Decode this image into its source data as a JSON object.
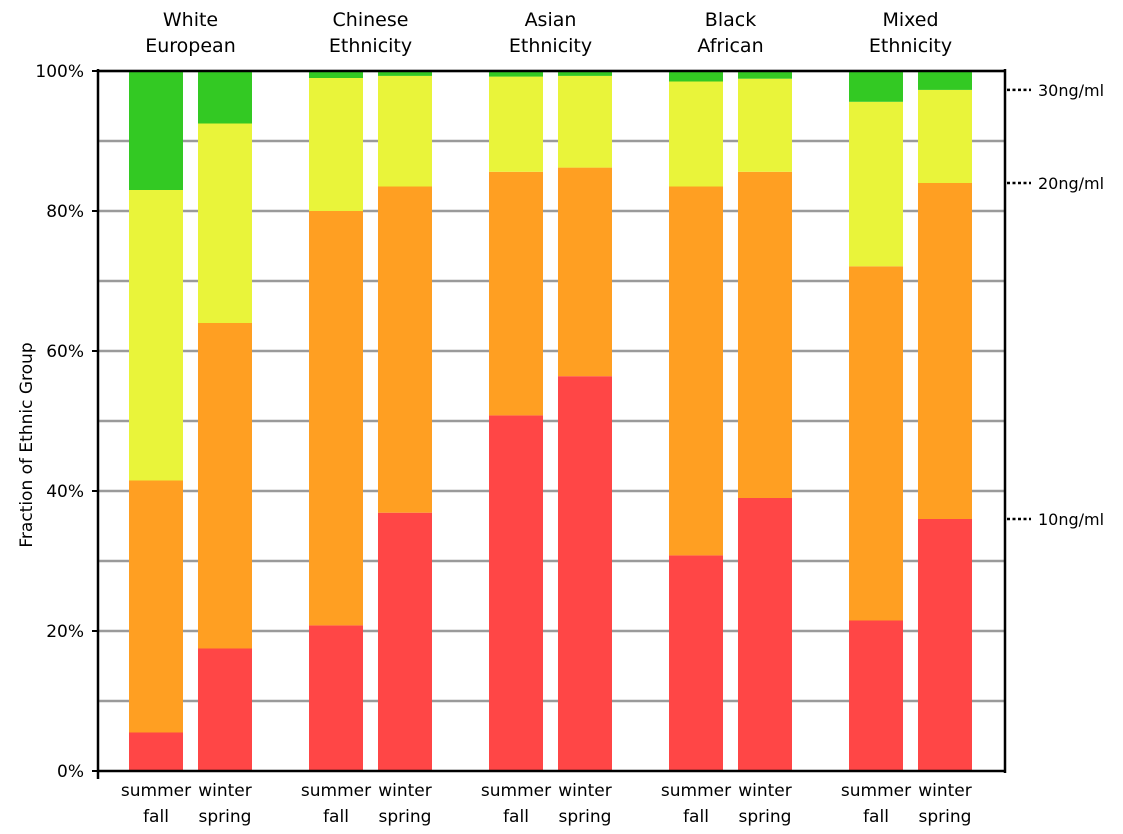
{
  "chart_data": {
    "type": "bar",
    "stacked": true,
    "ylabel": "Fraction of Ethnic Group",
    "ylim": [
      0,
      100
    ],
    "yticks": [
      "0%",
      "20%",
      "40%",
      "60%",
      "80%",
      "100%"
    ],
    "grid": true,
    "groups": [
      {
        "label_lines": [
          "White",
          "European"
        ],
        "bars": [
          {
            "label_lines": [
              "summer",
              "fall"
            ],
            "segments": [
              5.5,
              36.0,
              41.5,
              17.0
            ]
          },
          {
            "label_lines": [
              "winter",
              "spring"
            ],
            "segments": [
              17.5,
              46.5,
              28.5,
              7.5
            ]
          }
        ]
      },
      {
        "label_lines": [
          "Chinese",
          "Ethnicity"
        ],
        "bars": [
          {
            "label_lines": [
              "summer",
              "fall"
            ],
            "segments": [
              20.8,
              59.2,
              19.0,
              1.0
            ]
          },
          {
            "label_lines": [
              "winter",
              "spring"
            ],
            "segments": [
              36.9,
              46.6,
              15.8,
              0.7
            ]
          }
        ]
      },
      {
        "label_lines": [
          "Asian",
          "Ethnicity"
        ],
        "bars": [
          {
            "label_lines": [
              "summer",
              "fall"
            ],
            "segments": [
              50.8,
              34.8,
              13.6,
              0.8
            ]
          },
          {
            "label_lines": [
              "winter",
              "spring"
            ],
            "segments": [
              56.4,
              29.8,
              13.1,
              0.7
            ]
          }
        ]
      },
      {
        "label_lines": [
          "Black",
          "African"
        ],
        "bars": [
          {
            "label_lines": [
              "summer",
              "fall"
            ],
            "segments": [
              30.8,
              52.7,
              15.0,
              1.5
            ]
          },
          {
            "label_lines": [
              "winter",
              "spring"
            ],
            "segments": [
              39.0,
              46.6,
              13.3,
              1.1
            ]
          }
        ]
      },
      {
        "label_lines": [
          "Mixed",
          "Ethnicity"
        ],
        "bars": [
          {
            "label_lines": [
              "summer",
              "fall"
            ],
            "segments": [
              21.5,
              50.6,
              23.5,
              4.4
            ]
          },
          {
            "label_lines": [
              "winter",
              "spring"
            ],
            "segments": [
              36.0,
              48.0,
              13.3,
              2.7
            ]
          }
        ]
      }
    ],
    "threshold_labels": [
      {
        "text": "10ng/ml",
        "value": 36.0
      },
      {
        "text": "20ng/ml",
        "value": 84.0
      },
      {
        "text": "30ng/ml",
        "value": 97.3
      }
    ],
    "colors": [
      "#ff4646",
      "#ff9f22",
      "#e9f43a",
      "#33c923"
    ]
  }
}
